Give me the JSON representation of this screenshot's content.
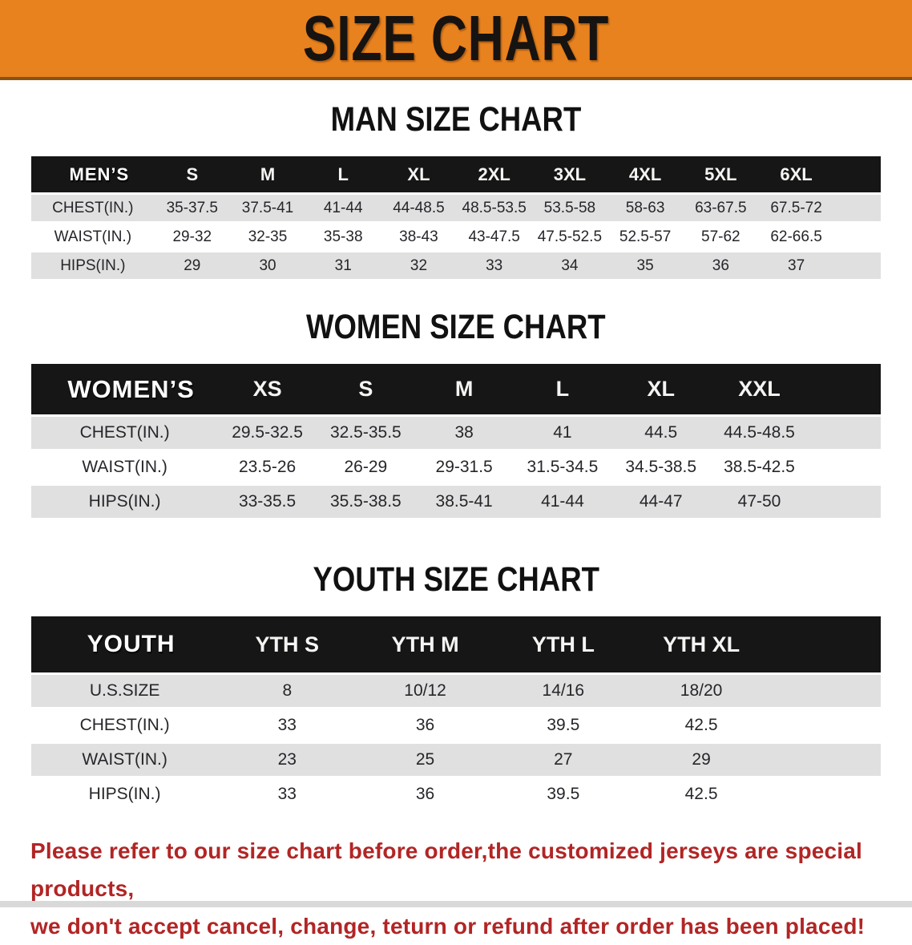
{
  "banner": {
    "title": "SIZE CHART",
    "bg_color": "#E8821E",
    "text_color": "#171310"
  },
  "colors": {
    "table_header_bg": "#161616",
    "row_stripe_gray": "#E0E0E0",
    "disclaimer_red": "#B22525"
  },
  "sections": [
    {
      "heading": "MAN SIZE CHART",
      "table": {
        "header_label": "MEN’S",
        "columns": [
          "S",
          "M",
          "L",
          "XL",
          "2XL",
          "3XL",
          "4XL",
          "5XL",
          "6XL"
        ],
        "rows": [
          {
            "label": "CHEST(IN.)",
            "values": [
              "35-37.5",
              "37.5-41",
              "41-44",
              "44-48.5",
              "48.5-53.5",
              "53.5-58",
              "58-63",
              "63-67.5",
              "67.5-72"
            ]
          },
          {
            "label": "WAIST(IN.)",
            "values": [
              "29-32",
              "32-35",
              "35-38",
              "38-43",
              "43-47.5",
              "47.5-52.5",
              "52.5-57",
              "57-62",
              "62-66.5"
            ]
          },
          {
            "label": "HIPS(IN.)",
            "values": [
              "29",
              "30",
              "31",
              "32",
              "33",
              "34",
              "35",
              "36",
              "37"
            ]
          }
        ]
      }
    },
    {
      "heading": "WOMEN SIZE CHART",
      "table": {
        "header_label": "WOMEN’S",
        "columns": [
          "XS",
          "S",
          "M",
          "L",
          "XL",
          "XXL"
        ],
        "rows": [
          {
            "label": "CHEST(IN.)",
            "values": [
              "29.5-32.5",
              "32.5-35.5",
              "38",
              "41",
              "44.5",
              "44.5-48.5"
            ]
          },
          {
            "label": "WAIST(IN.)",
            "values": [
              "23.5-26",
              "26-29",
              "29-31.5",
              "31.5-34.5",
              "34.5-38.5",
              "38.5-42.5"
            ]
          },
          {
            "label": "HIPS(IN.)",
            "values": [
              "33-35.5",
              "35.5-38.5",
              "38.5-41",
              "41-44",
              "44-47",
              "47-50"
            ]
          }
        ]
      }
    },
    {
      "heading": "YOUTH SIZE CHART",
      "table": {
        "header_label": "YOUTH",
        "columns": [
          "YTH S",
          "YTH M",
          "YTH L",
          "YTH XL"
        ],
        "rows": [
          {
            "label": "U.S.SIZE",
            "values": [
              "8",
              "10/12",
              "14/16",
              "18/20"
            ]
          },
          {
            "label": "CHEST(IN.)",
            "values": [
              "33",
              "36",
              "39.5",
              "42.5"
            ]
          },
          {
            "label": "WAIST(IN.)",
            "values": [
              "23",
              "25",
              "27",
              "29"
            ]
          },
          {
            "label": "HIPS(IN.)",
            "values": [
              "33",
              "36",
              "39.5",
              "42.5"
            ]
          }
        ]
      }
    }
  ],
  "disclaimer": {
    "line1": "Please refer to our size chart before order,the customized jerseys are special products,",
    "line2": "we don't accept cancel, change, teturn or refund after order has been placed!"
  }
}
